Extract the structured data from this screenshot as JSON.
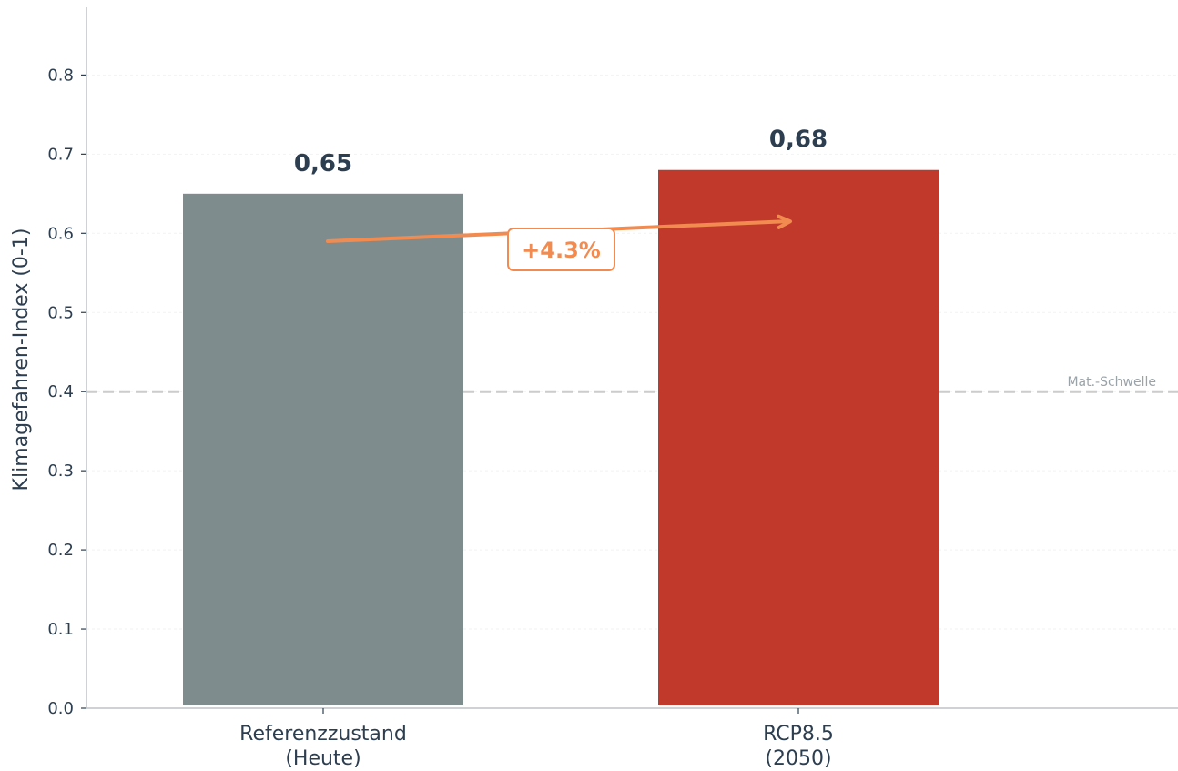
{
  "chart_data": {
    "type": "bar",
    "title": "",
    "ylabel": "Klimagefahren-Index (0-1)",
    "xlabel": "",
    "ylim": [
      0,
      0.88
    ],
    "yticks": [
      "0.0",
      "0.1",
      "0.2",
      "0.3",
      "0.4",
      "0.5",
      "0.6",
      "0.7",
      "0.8"
    ],
    "grid": true,
    "categories": [
      [
        "Referenzzustand",
        "(Heute)"
      ],
      [
        "RCP8.5",
        "(2050)"
      ]
    ],
    "values": [
      0.65,
      0.68
    ],
    "value_labels": [
      "0,65",
      "0,68"
    ],
    "colors": [
      "#7f8c8d",
      "#c0392b"
    ],
    "threshold": {
      "value": 0.4,
      "label": "Mat.-Schwelle",
      "color": "#cccccc"
    },
    "change": {
      "label": "+4.3%",
      "from_y": 0.59,
      "to_y": 0.615,
      "color": "#f28b50"
    }
  }
}
